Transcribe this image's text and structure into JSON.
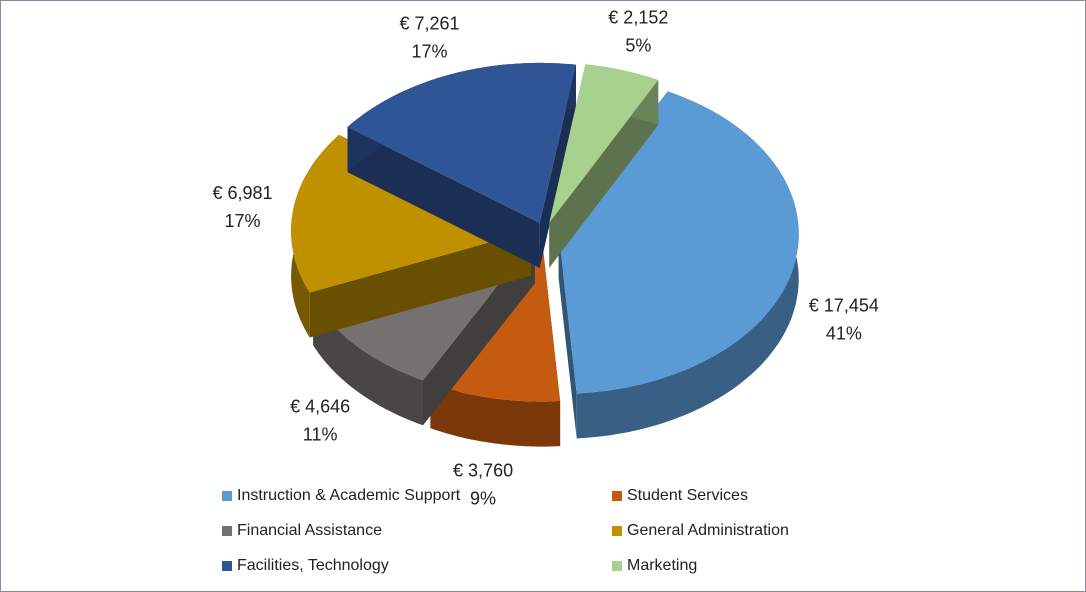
{
  "chart_data": {
    "type": "pie3d",
    "categories": [
      "Instruction & Academic Support",
      "Student Services",
      "Financial Assistance",
      "General Administration",
      "Facilities, Technology",
      "Marketing"
    ],
    "values": [
      17454,
      3760,
      4646,
      6981,
      7261,
      2152
    ],
    "value_labels": [
      "€ 17,454",
      "€ 3,760",
      "€ 4,646",
      "€ 6,981",
      "€ 7,261",
      "€ 2,152"
    ],
    "percent_labels": [
      "41%",
      "9%",
      "11%",
      "17%",
      "17%",
      "5%"
    ],
    "colors": [
      "#5b9bd5",
      "#c55a11",
      "#767171",
      "#bf9000",
      "#2f5597",
      "#a9d18e"
    ],
    "legend": "bottom"
  }
}
